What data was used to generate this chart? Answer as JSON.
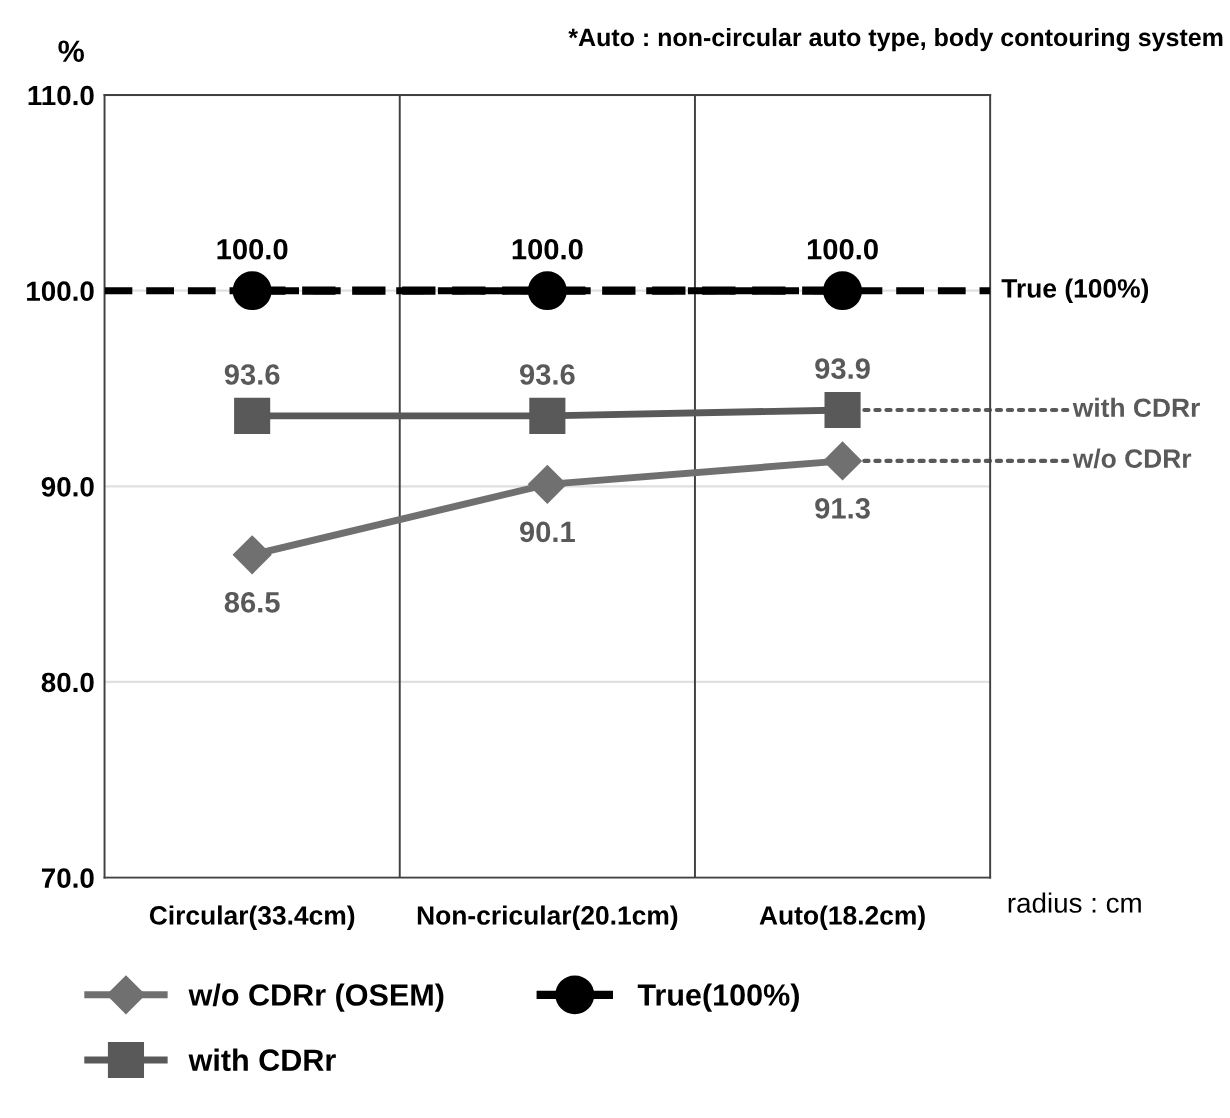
{
  "chart_data": {
    "type": "line",
    "categories": [
      "Circular(33.4cm)",
      "Non-cricular(20.1cm)",
      "Auto(18.2cm)"
    ],
    "series": [
      {
        "name": "w/o CDRr (OSEM)",
        "color": "#707070",
        "marker": "diamond",
        "line_style": "solid",
        "values": [
          86.5,
          90.1,
          91.3
        ],
        "value_labels": [
          "86.5",
          "90.1",
          "91.3"
        ]
      },
      {
        "name": "with CDRr",
        "color": "#595959",
        "marker": "square",
        "line_style": "solid",
        "values": [
          93.6,
          93.6,
          93.9
        ],
        "value_labels": [
          "93.6",
          "93.6",
          "93.9"
        ]
      },
      {
        "name": "True(100%)",
        "color": "#000000",
        "marker": "circle",
        "line_style": "dashed",
        "values": [
          100.0,
          100.0,
          100.0
        ],
        "value_labels": [
          "100.0",
          "100.0",
          "100.0"
        ]
      }
    ],
    "ylabel": "%",
    "xlabel": "radius : cm",
    "ylim": [
      70,
      110
    ],
    "yticks": [
      {
        "value": 70,
        "label": "70.0"
      },
      {
        "value": 80,
        "label": "80.0"
      },
      {
        "value": 90,
        "label": "90.0"
      },
      {
        "value": 100,
        "label": "100.0"
      },
      {
        "value": 110,
        "label": "110.0"
      }
    ],
    "ref_lines": [
      {
        "axis": "y",
        "value": 100,
        "label": "True (100%)",
        "color": "#000000",
        "line_style": "dashed"
      }
    ],
    "annotations": [
      "*Auto : non-circular auto type, body contouring system",
      {
        "text": "with CDRr",
        "x": "Auto(18.2cm)",
        "y": 93.9
      },
      {
        "text": "w/o CDRr",
        "x": "Auto(18.2cm)",
        "y": 91.3
      }
    ],
    "grid": "y",
    "legend": "bottom"
  }
}
